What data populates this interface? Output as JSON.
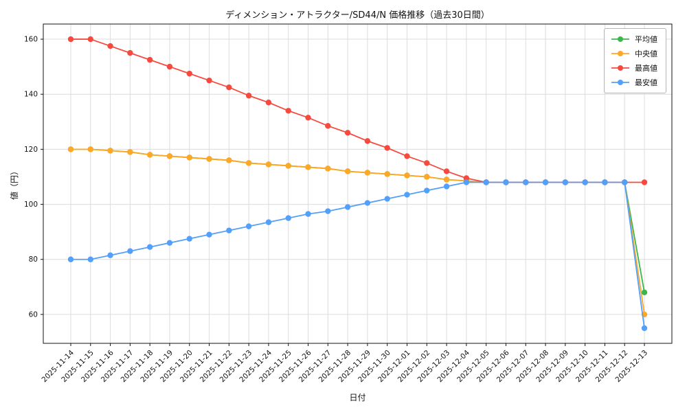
{
  "chart_data": {
    "type": "line",
    "title": "ディメンション・アトラクター/SD44/N 価格推移（過去30日間）",
    "xlabel": "日付",
    "ylabel": "値（円）",
    "x": [
      "2025-11-14",
      "2025-11-15",
      "2025-11-16",
      "2025-11-17",
      "2025-11-18",
      "2025-11-19",
      "2025-11-20",
      "2025-11-21",
      "2025-11-22",
      "2025-11-23",
      "2025-11-24",
      "2025-11-25",
      "2025-11-26",
      "2025-11-27",
      "2025-11-28",
      "2025-11-29",
      "2025-11-30",
      "2025-12-01",
      "2025-12-02",
      "2025-12-03",
      "2025-12-04",
      "2025-12-05",
      "2025-12-06",
      "2025-12-07",
      "2025-12-08",
      "2025-12-09",
      "2025-12-10",
      "2025-12-11",
      "2025-12-12",
      "2025-12-13"
    ],
    "series": [
      {
        "key": "mean",
        "name": "平均値",
        "color": "#3cb54a",
        "values": [
          120,
          120,
          119.5,
          119,
          118,
          117.5,
          117,
          116.5,
          116,
          115,
          114.5,
          114,
          113.5,
          113,
          112,
          111.5,
          111,
          110.5,
          110,
          109,
          108.5,
          108,
          108,
          108,
          108,
          108,
          108,
          108,
          108,
          68
        ]
      },
      {
        "key": "median",
        "name": "中央値",
        "color": "#ffa726",
        "values": [
          120,
          120,
          119.5,
          119,
          118,
          117.5,
          117,
          116.5,
          116,
          115,
          114.5,
          114,
          113.5,
          113,
          112,
          111.5,
          111,
          110.5,
          110,
          109,
          108.5,
          108,
          108,
          108,
          108,
          108,
          108,
          108,
          108,
          60
        ]
      },
      {
        "key": "max",
        "name": "最高値",
        "color": "#f74a3f",
        "values": [
          160,
          160,
          157.5,
          155,
          152.5,
          150,
          147.5,
          145,
          142.5,
          139.5,
          137,
          134,
          131.5,
          128.5,
          126,
          123,
          120.5,
          117.5,
          115,
          112,
          109.5,
          108,
          108,
          108,
          108,
          108,
          108,
          108,
          108,
          108
        ]
      },
      {
        "key": "min",
        "name": "最安値",
        "color": "#549ff7",
        "values": [
          80,
          80,
          81.5,
          83,
          84.5,
          86,
          87.5,
          89,
          90.5,
          92,
          93.5,
          95,
          96.5,
          97.5,
          99,
          100.5,
          102,
          103.5,
          105,
          106.5,
          108,
          108,
          108,
          108,
          108,
          108,
          108,
          108,
          108,
          55
        ]
      }
    ],
    "ylim": [
      49.5,
      165.5
    ],
    "yticks": [
      60,
      80,
      100,
      120,
      140,
      160
    ],
    "grid": true,
    "legend_position": "top-right"
  }
}
